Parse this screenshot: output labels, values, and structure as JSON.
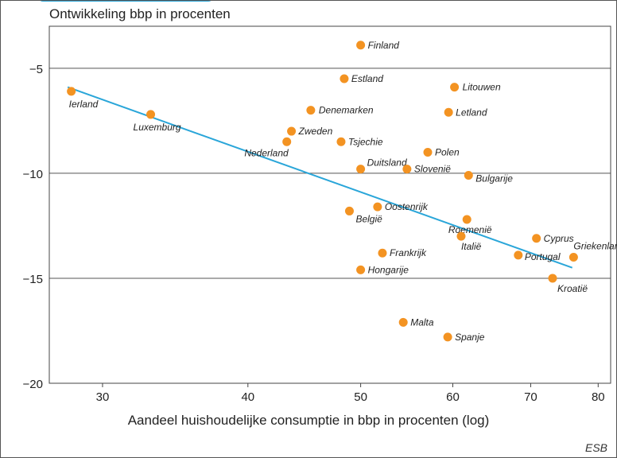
{
  "chart_data": {
    "type": "scatter",
    "title": "Ontwikkeling bbp in procenten",
    "xlabel": "Aandeel huishoudelijke consumptie in bbp in procenten (log)",
    "ylabel": "",
    "x_scale": "log",
    "xlim": [
      27,
      82
    ],
    "ylim": [
      -20,
      -3
    ],
    "x_ticks": [
      30,
      40,
      50,
      60,
      70,
      80
    ],
    "y_ticks": [
      -5,
      -10,
      -15,
      -20
    ],
    "y_tick_labels": [
      "−5",
      "−10",
      "−15",
      "−20"
    ],
    "grid": "horizontal",
    "point_color": "#f39322",
    "line_color": "#2aa6d9",
    "points": [
      {
        "label": "Finland",
        "x": 50,
        "y": -3.9
      },
      {
        "label": "Estland",
        "x": 48.4,
        "y": -5.5
      },
      {
        "label": "Litouwen",
        "x": 60.2,
        "y": -5.9
      },
      {
        "label": "Ierland",
        "x": 28.2,
        "y": -6.1
      },
      {
        "label": "Denemarken",
        "x": 45.3,
        "y": -7.0
      },
      {
        "label": "Letland",
        "x": 59.5,
        "y": -7.1
      },
      {
        "label": "Luxemburg",
        "x": 33.0,
        "y": -7.2
      },
      {
        "label": "Zweden",
        "x": 43.6,
        "y": -8.0
      },
      {
        "label": "Tsjechie",
        "x": 48.1,
        "y": -8.5
      },
      {
        "label": "Nederland",
        "x": 43.2,
        "y": -8.5
      },
      {
        "label": "Polen",
        "x": 57.1,
        "y": -9.0
      },
      {
        "label": "Duitsland",
        "x": 50.0,
        "y": -9.8
      },
      {
        "label": "Slovenië",
        "x": 54.8,
        "y": -9.8
      },
      {
        "label": "Bulgarije",
        "x": 61.9,
        "y": -10.1
      },
      {
        "label": "Oostenrijk",
        "x": 51.7,
        "y": -11.6
      },
      {
        "label": "België",
        "x": 48.9,
        "y": -11.8
      },
      {
        "label": "Roemenië",
        "x": 61.7,
        "y": -12.2
      },
      {
        "label": "Italië",
        "x": 61.0,
        "y": -13.0
      },
      {
        "label": "Cyprus",
        "x": 70.8,
        "y": -13.1
      },
      {
        "label": "Griekenland",
        "x": 76.2,
        "y": -14.0
      },
      {
        "label": "Frankrijk",
        "x": 52.2,
        "y": -13.8
      },
      {
        "label": "Portugal",
        "x": 68.3,
        "y": -13.9
      },
      {
        "label": "Hongarije",
        "x": 50.0,
        "y": -14.6
      },
      {
        "label": "Kroatië",
        "x": 73.1,
        "y": -15.0
      },
      {
        "label": "Malta",
        "x": 54.4,
        "y": -17.1
      },
      {
        "label": "Spanje",
        "x": 59.4,
        "y": -17.8
      }
    ],
    "trendline": {
      "x": [
        28.0,
        76.0
      ],
      "y": [
        -5.9,
        -14.5
      ]
    }
  },
  "source": "ESB"
}
